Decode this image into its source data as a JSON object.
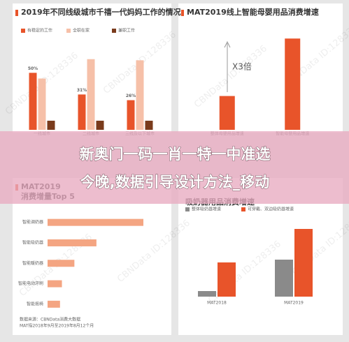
{
  "watermark": "CBNData ID:128336",
  "banner": [
    "新奥门一码一肖一特一中准选",
    "今晚,数据引导设计方法_移动"
  ],
  "chart_data": [
    {
      "type": "bar",
      "title": "2019年不同线级城市千禧一代妈妈工作的情况",
      "categories": [
        "一线城市",
        "二线城市",
        "三线及以下城市"
      ],
      "series": [
        {
          "name": "有稳定的工作",
          "color": "#e8542a",
          "values": [
            50,
            31,
            26
          ],
          "value_labels": [
            "50%",
            "31%",
            "26%"
          ]
        },
        {
          "name": "全职在家",
          "color": "#f6c0a8",
          "values": [
            45,
            62,
            61
          ]
        },
        {
          "name": "兼职工作",
          "color": "#7a3b1c",
          "values": [
            8,
            8,
            8
          ]
        }
      ],
      "ylim": [
        0,
        60
      ]
    },
    {
      "type": "bar",
      "title": "MAT2019线上智能母婴用品消费增速",
      "categories": [
        "整体母婴用品增速",
        "智能母婴用品增速"
      ],
      "values": [
        1,
        2.7
      ],
      "color": "#e8542a",
      "annotation": "X3倍",
      "ylim": [
        0,
        3.2
      ]
    },
    {
      "type": "hbar",
      "title": [
        "MAT2019",
        "消费增量Top 5"
      ],
      "categories": [
        "智能调奶器",
        "智能吸奶器",
        "智能暖奶器",
        "智能电动牙刷",
        "智能摇椅"
      ],
      "values": [
        100,
        51,
        28,
        15,
        13
      ],
      "color": "#f4a582",
      "xlim": [
        0,
        100
      ],
      "source": [
        "数据来源：CBNData消费大数据",
        "MAT指2018年9月至2019年8月12个月"
      ]
    },
    {
      "type": "bar",
      "title": "吸奶器用品消费增速",
      "categories": [
        "MAT2018",
        "MAT2019"
      ],
      "series": [
        {
          "name": "整体吸奶器增速",
          "color": "#8a8a8a",
          "values": [
            8,
            53
          ]
        },
        {
          "name": "可穿戴、双边吸奶器增速",
          "color": "#e8542a",
          "values": [
            49,
            97
          ]
        }
      ],
      "ylim": [
        0,
        110
      ]
    }
  ]
}
